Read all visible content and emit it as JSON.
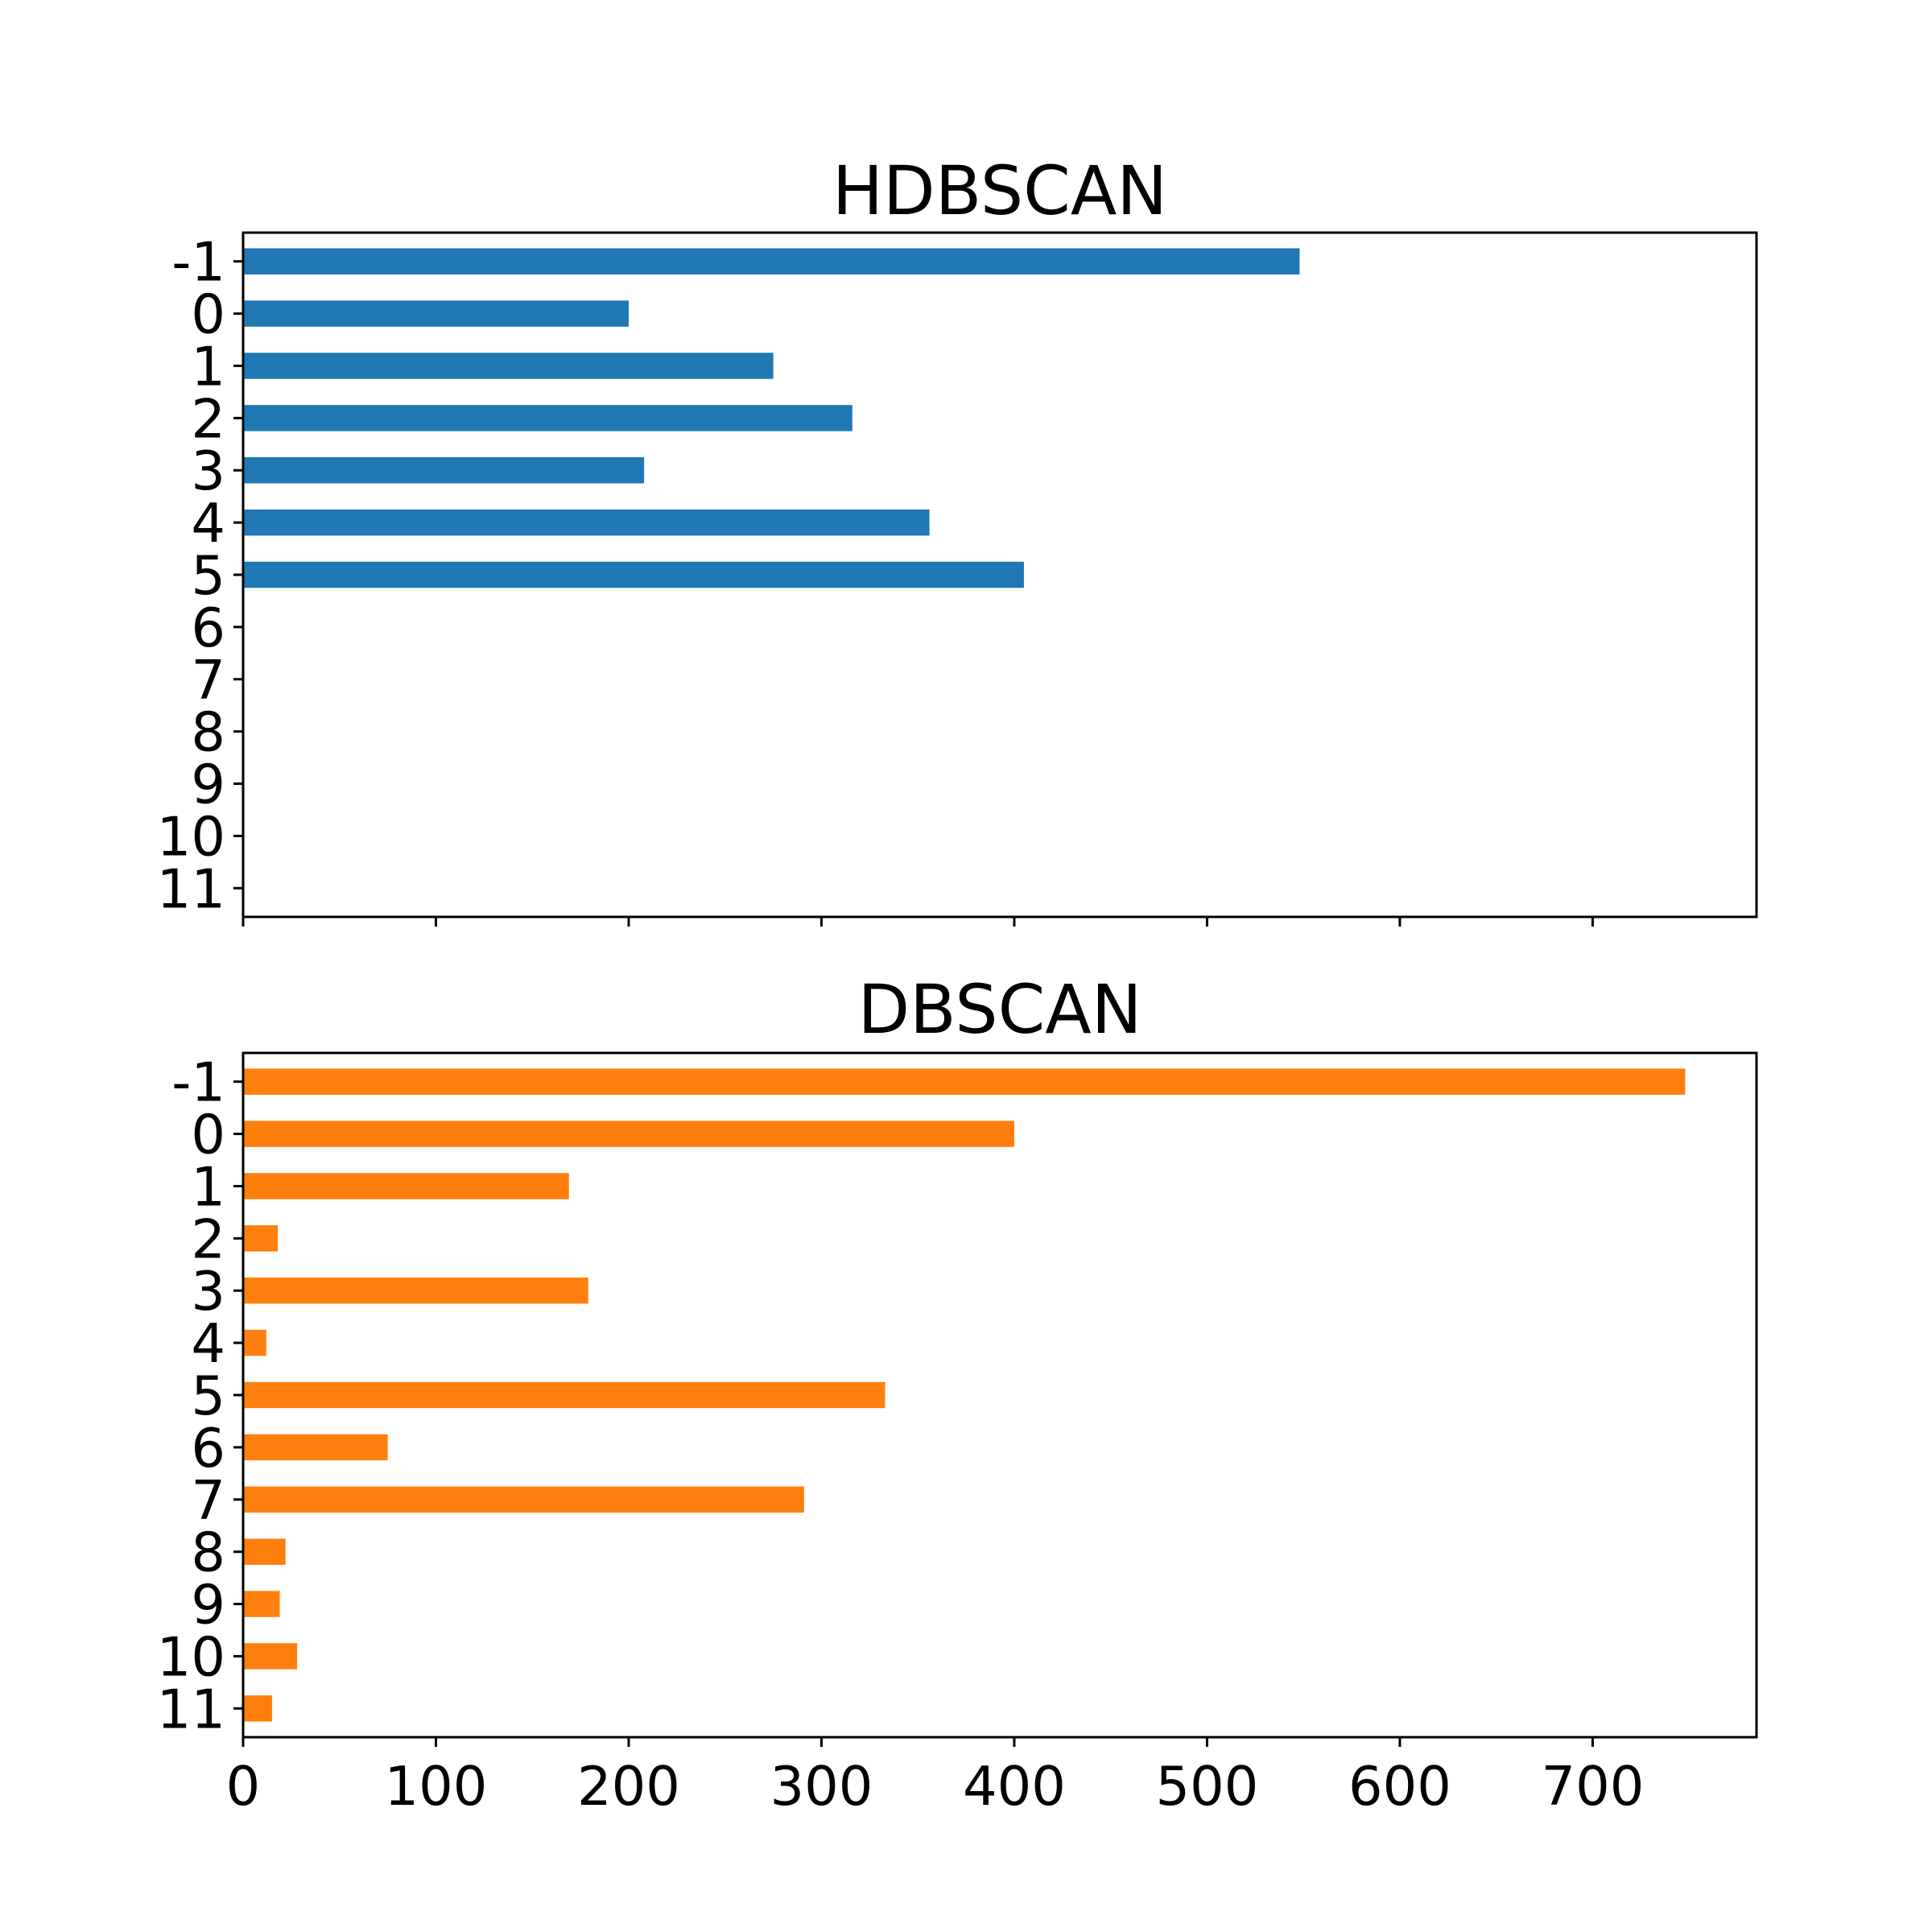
{
  "chart_data": [
    {
      "type": "bar",
      "orientation": "horizontal",
      "title": "HDBSCAN",
      "xlabel": "",
      "ylabel": "",
      "categories": [
        "-1",
        "0",
        "1",
        "2",
        "3",
        "4",
        "5",
        "6",
        "7",
        "8",
        "9",
        "10",
        "11"
      ],
      "values": [
        548,
        200,
        275,
        316,
        208,
        356,
        405,
        0,
        0,
        0,
        0,
        0,
        0
      ],
      "color": "#1f77b4",
      "xlim": [
        0,
        785
      ],
      "xticks": [
        0,
        100,
        200,
        300,
        400,
        500,
        600,
        700
      ],
      "show_xtick_labels": false,
      "grid": false,
      "legend": false
    },
    {
      "type": "bar",
      "orientation": "horizontal",
      "title": "DBSCAN",
      "xlabel": "",
      "ylabel": "",
      "categories": [
        "-1",
        "0",
        "1",
        "2",
        "3",
        "4",
        "5",
        "6",
        "7",
        "8",
        "9",
        "10",
        "11"
      ],
      "values": [
        748,
        400,
        169,
        18,
        179,
        12,
        333,
        75,
        291,
        22,
        19,
        28,
        15
      ],
      "color": "#ff7f0e",
      "xlim": [
        0,
        785
      ],
      "xticks": [
        0,
        100,
        200,
        300,
        400,
        500,
        600,
        700
      ],
      "xtick_labels": [
        "0",
        "100",
        "200",
        "300",
        "400",
        "500",
        "600",
        "700"
      ],
      "show_xtick_labels": true,
      "grid": false,
      "legend": false
    }
  ]
}
